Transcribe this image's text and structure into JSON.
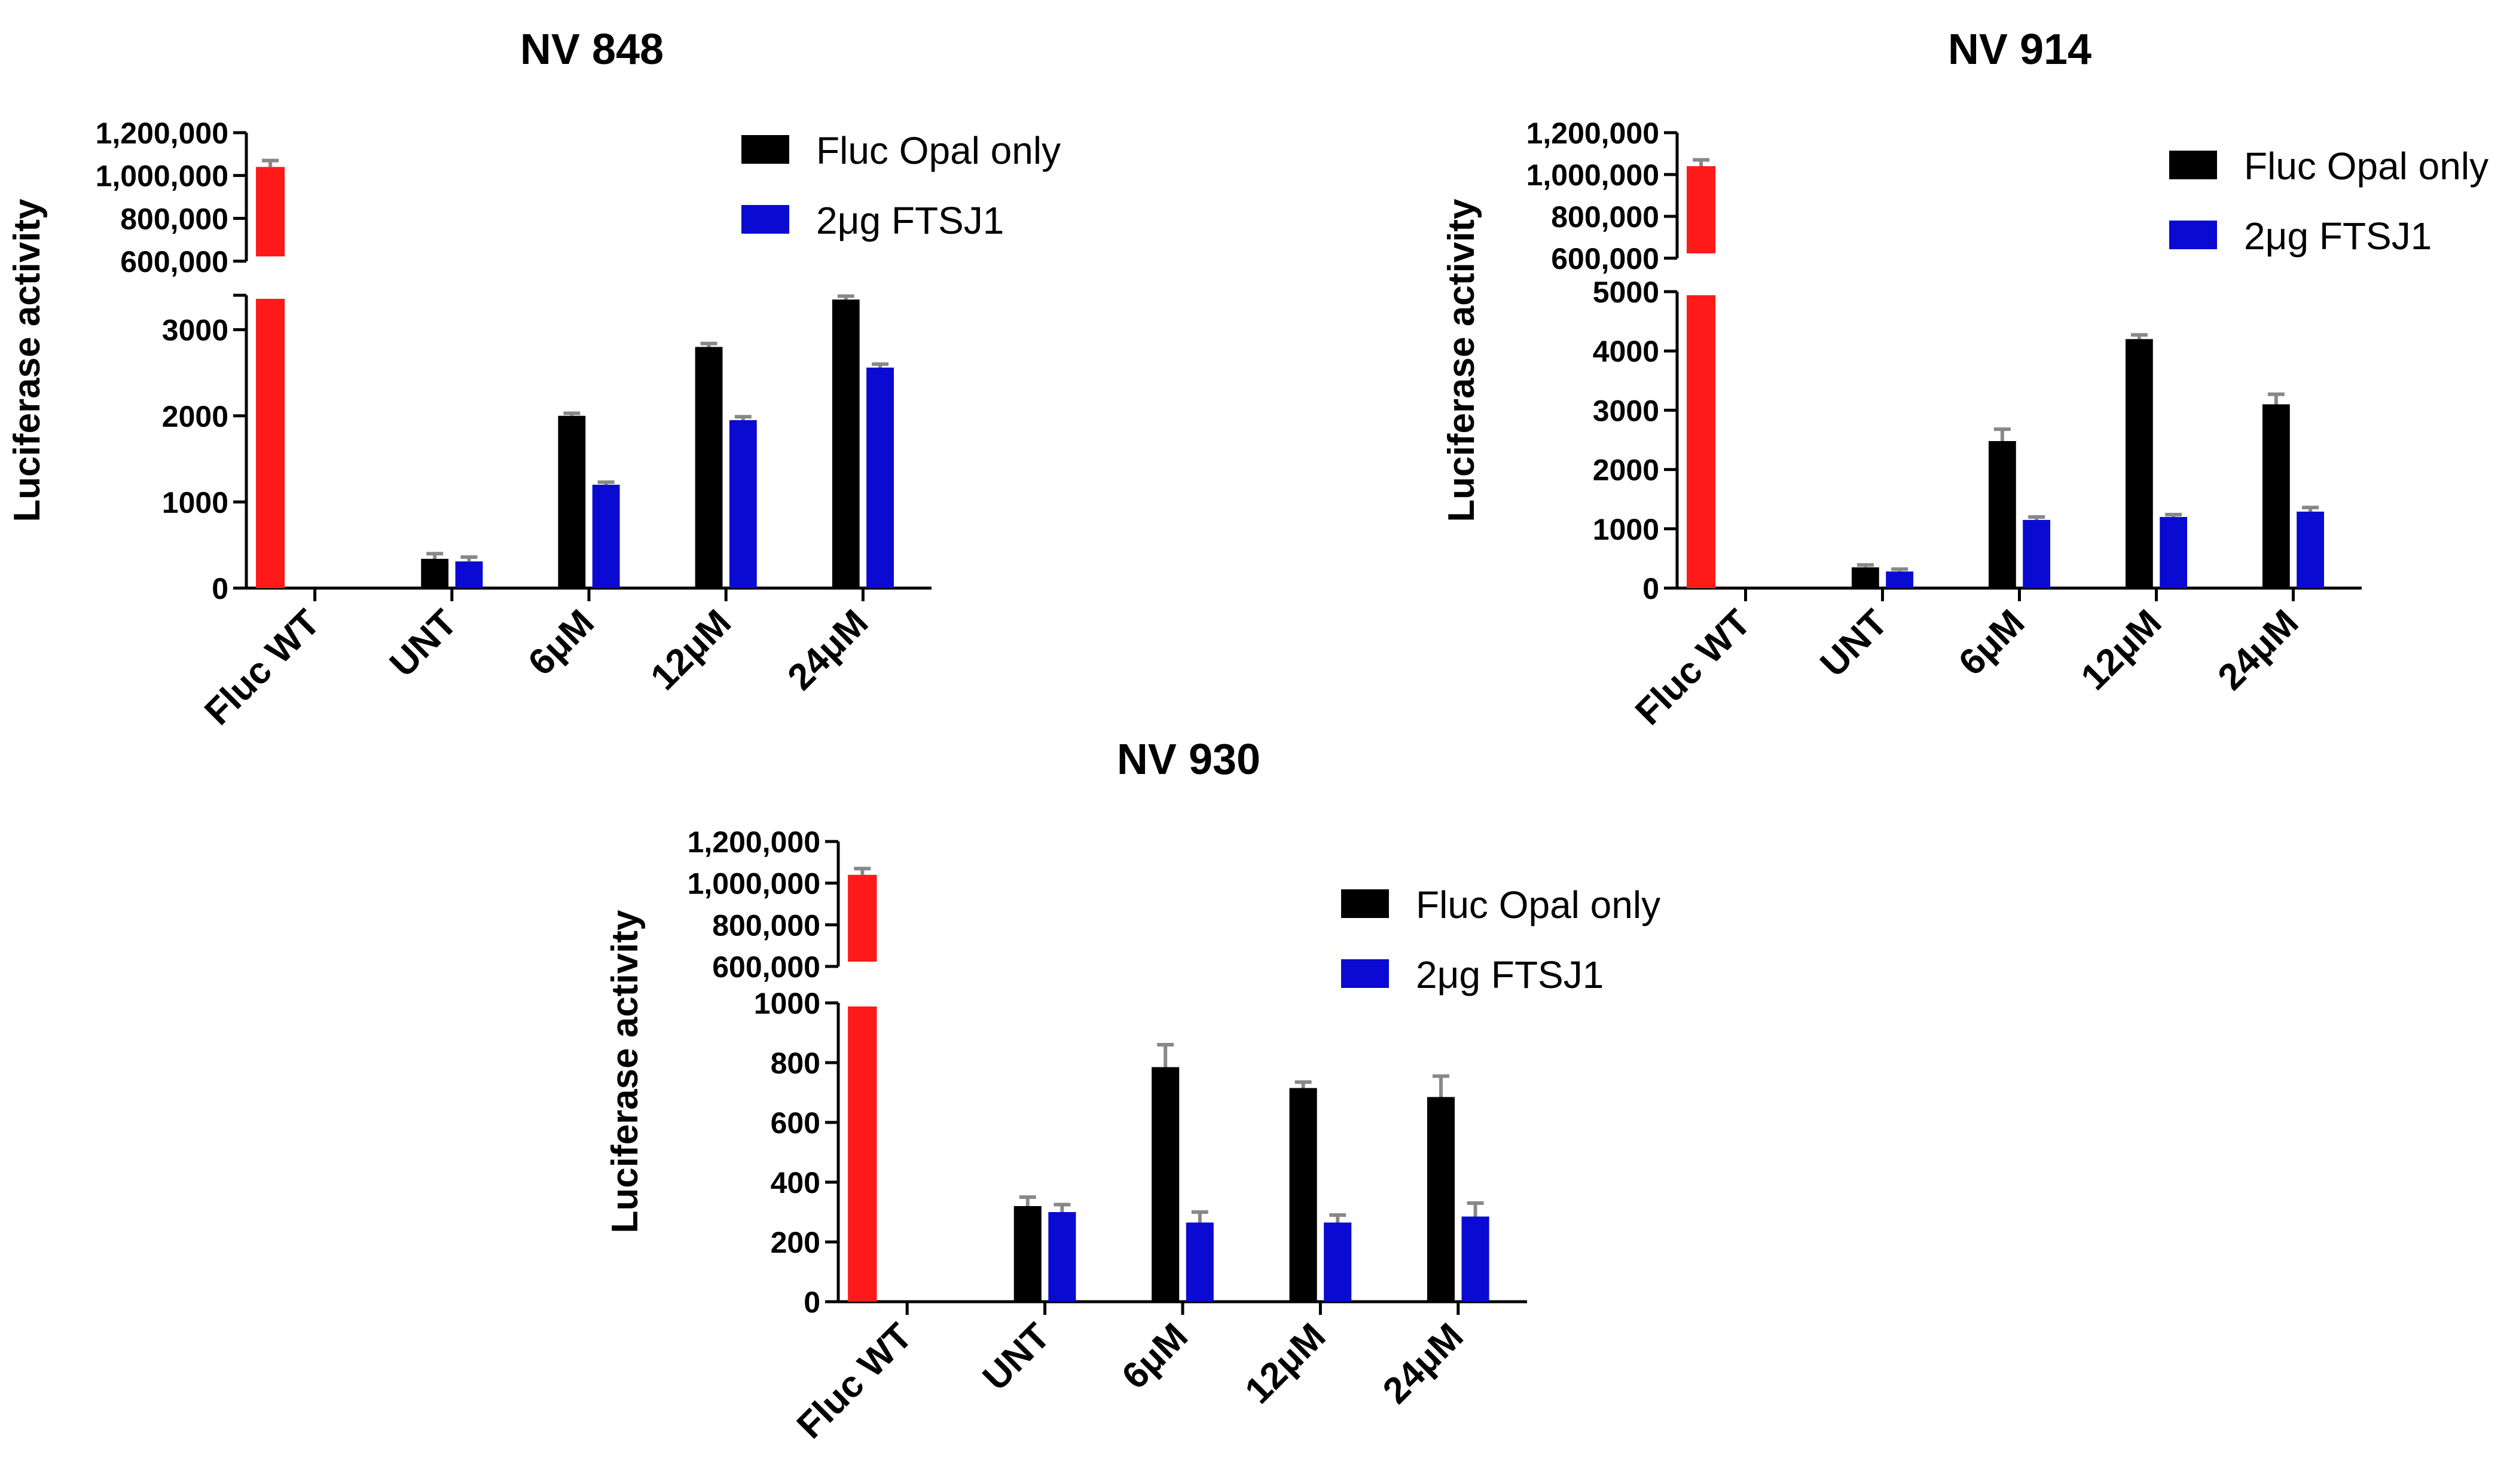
{
  "colors": {
    "wt": "#ff1a1a",
    "fluc_opal": "#000000",
    "ftsj1": "#0a0ad2",
    "error_bar": "#888888",
    "axis": "#000000"
  },
  "chart_data": [
    {
      "type": "bar",
      "title": "NV 848",
      "ylabel": "Luciferase activity",
      "xlabel": "",
      "categories": [
        "Fluc WT",
        "UNT",
        "6μM",
        "12μM",
        "24μM"
      ],
      "series": [
        {
          "name": "Fluc Opal only",
          "values": [
            null,
            340,
            2000,
            2800,
            3350
          ],
          "errors": [
            null,
            60,
            30,
            40,
            40
          ]
        },
        {
          "name": "2μg FTSJ1",
          "values": [
            null,
            310,
            1200,
            1950,
            2560
          ],
          "errors": [
            null,
            50,
            30,
            40,
            40
          ]
        }
      ],
      "wt": {
        "value": 1040000,
        "error": 30000
      },
      "upper_axis": {
        "ylim": [
          600000,
          1200000
        ],
        "ticks": [
          600000,
          800000,
          1000000,
          1200000
        ],
        "tick_labels": [
          "600,000",
          "800,000",
          "1,000,000",
          "1,200,000"
        ]
      },
      "lower_axis": {
        "ylim": [
          0,
          3400
        ],
        "ticks": [
          0,
          1000,
          2000,
          3000
        ],
        "tick_labels": [
          "0",
          "1000",
          "2000",
          "3000"
        ]
      },
      "legend": "top-right"
    },
    {
      "type": "bar",
      "title": "NV 914",
      "ylabel": "Luciferase activity",
      "xlabel": "",
      "categories": [
        "Fluc WT",
        "UNT",
        "6μM",
        "12μM",
        "24μM"
      ],
      "series": [
        {
          "name": "Fluc Opal only",
          "values": [
            null,
            350,
            2480,
            4200,
            3100
          ],
          "errors": [
            null,
            40,
            200,
            70,
            170
          ]
        },
        {
          "name": "2μg FTSJ1",
          "values": [
            null,
            280,
            1150,
            1200,
            1290
          ],
          "errors": [
            null,
            40,
            50,
            40,
            70
          ]
        }
      ],
      "wt": {
        "value": 1040000,
        "error": 30000
      },
      "upper_axis": {
        "ylim": [
          600000,
          1200000
        ],
        "ticks": [
          600000,
          800000,
          1000000,
          1200000
        ],
        "tick_labels": [
          "600,000",
          "800,000",
          "1,000,000",
          "1,200,000"
        ]
      },
      "lower_axis": {
        "ylim": [
          0,
          5000
        ],
        "ticks": [
          0,
          1000,
          2000,
          3000,
          4000,
          5000
        ],
        "tick_labels": [
          "0",
          "1000",
          "2000",
          "3000",
          "4000",
          "5000"
        ]
      },
      "legend": "top-right"
    },
    {
      "type": "bar",
      "title": "NV 930",
      "ylabel": "Luciferase activity",
      "xlabel": "",
      "categories": [
        "Fluc WT",
        "UNT",
        "6μM",
        "12μM",
        "24μM"
      ],
      "series": [
        {
          "name": "Fluc Opal only",
          "values": [
            null,
            320,
            785,
            715,
            685
          ],
          "errors": [
            null,
            30,
            75,
            20,
            70
          ]
        },
        {
          "name": "2μg FTSJ1",
          "values": [
            null,
            300,
            265,
            265,
            285
          ],
          "errors": [
            null,
            25,
            35,
            25,
            45
          ]
        }
      ],
      "wt": {
        "value": 1040000,
        "error": 30000
      },
      "upper_axis": {
        "ylim": [
          600000,
          1200000
        ],
        "ticks": [
          600000,
          800000,
          1000000,
          1200000
        ],
        "tick_labels": [
          "600,000",
          "800,000",
          "1,000,000",
          "1,200,000"
        ]
      },
      "lower_axis": {
        "ylim": [
          0,
          1000
        ],
        "ticks": [
          0,
          200,
          400,
          600,
          800,
          1000
        ],
        "tick_labels": [
          "0",
          "200",
          "400",
          "600",
          "800",
          "1000"
        ]
      },
      "legend": "top-right"
    }
  ]
}
